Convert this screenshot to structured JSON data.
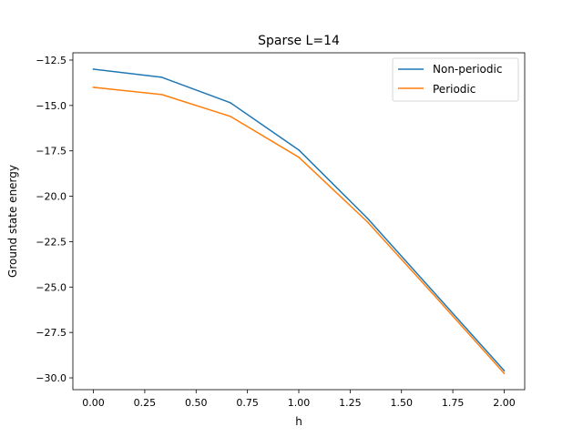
{
  "chart_data": {
    "type": "line",
    "title": "Sparse L=14",
    "xlabel": "h",
    "ylabel": "Ground state energy",
    "xlim": [
      -0.1,
      2.1
    ],
    "ylim": [
      -30.65,
      -12.1
    ],
    "x": [
      0.0,
      0.3333,
      0.6667,
      1.0,
      1.3333,
      1.6667,
      2.0
    ],
    "xticks": [
      0.0,
      0.25,
      0.5,
      0.75,
      1.0,
      1.25,
      1.5,
      1.75,
      2.0
    ],
    "xtick_labels": [
      "0.00",
      "0.25",
      "0.50",
      "0.75",
      "1.00",
      "1.25",
      "1.50",
      "1.75",
      "2.00"
    ],
    "yticks": [
      -12.5,
      -15.0,
      -17.5,
      -20.0,
      -22.5,
      -25.0,
      -27.5,
      -30.0
    ],
    "ytick_labels": [
      "−12.5",
      "−15.0",
      "−17.5",
      "−20.0",
      "−22.5",
      "−25.0",
      "−27.5",
      "−30.0"
    ],
    "grid": false,
    "legend_position": "top-right",
    "series": [
      {
        "name": "Non-periodic",
        "color": "#1f77b4",
        "values": [
          -13.0,
          -13.45,
          -14.85,
          -17.45,
          -21.2,
          -25.4,
          -29.6
        ]
      },
      {
        "name": "Periodic",
        "color": "#ff7f0e",
        "values": [
          -14.0,
          -14.4,
          -15.6,
          -17.85,
          -21.4,
          -25.55,
          -29.75
        ]
      }
    ]
  }
}
